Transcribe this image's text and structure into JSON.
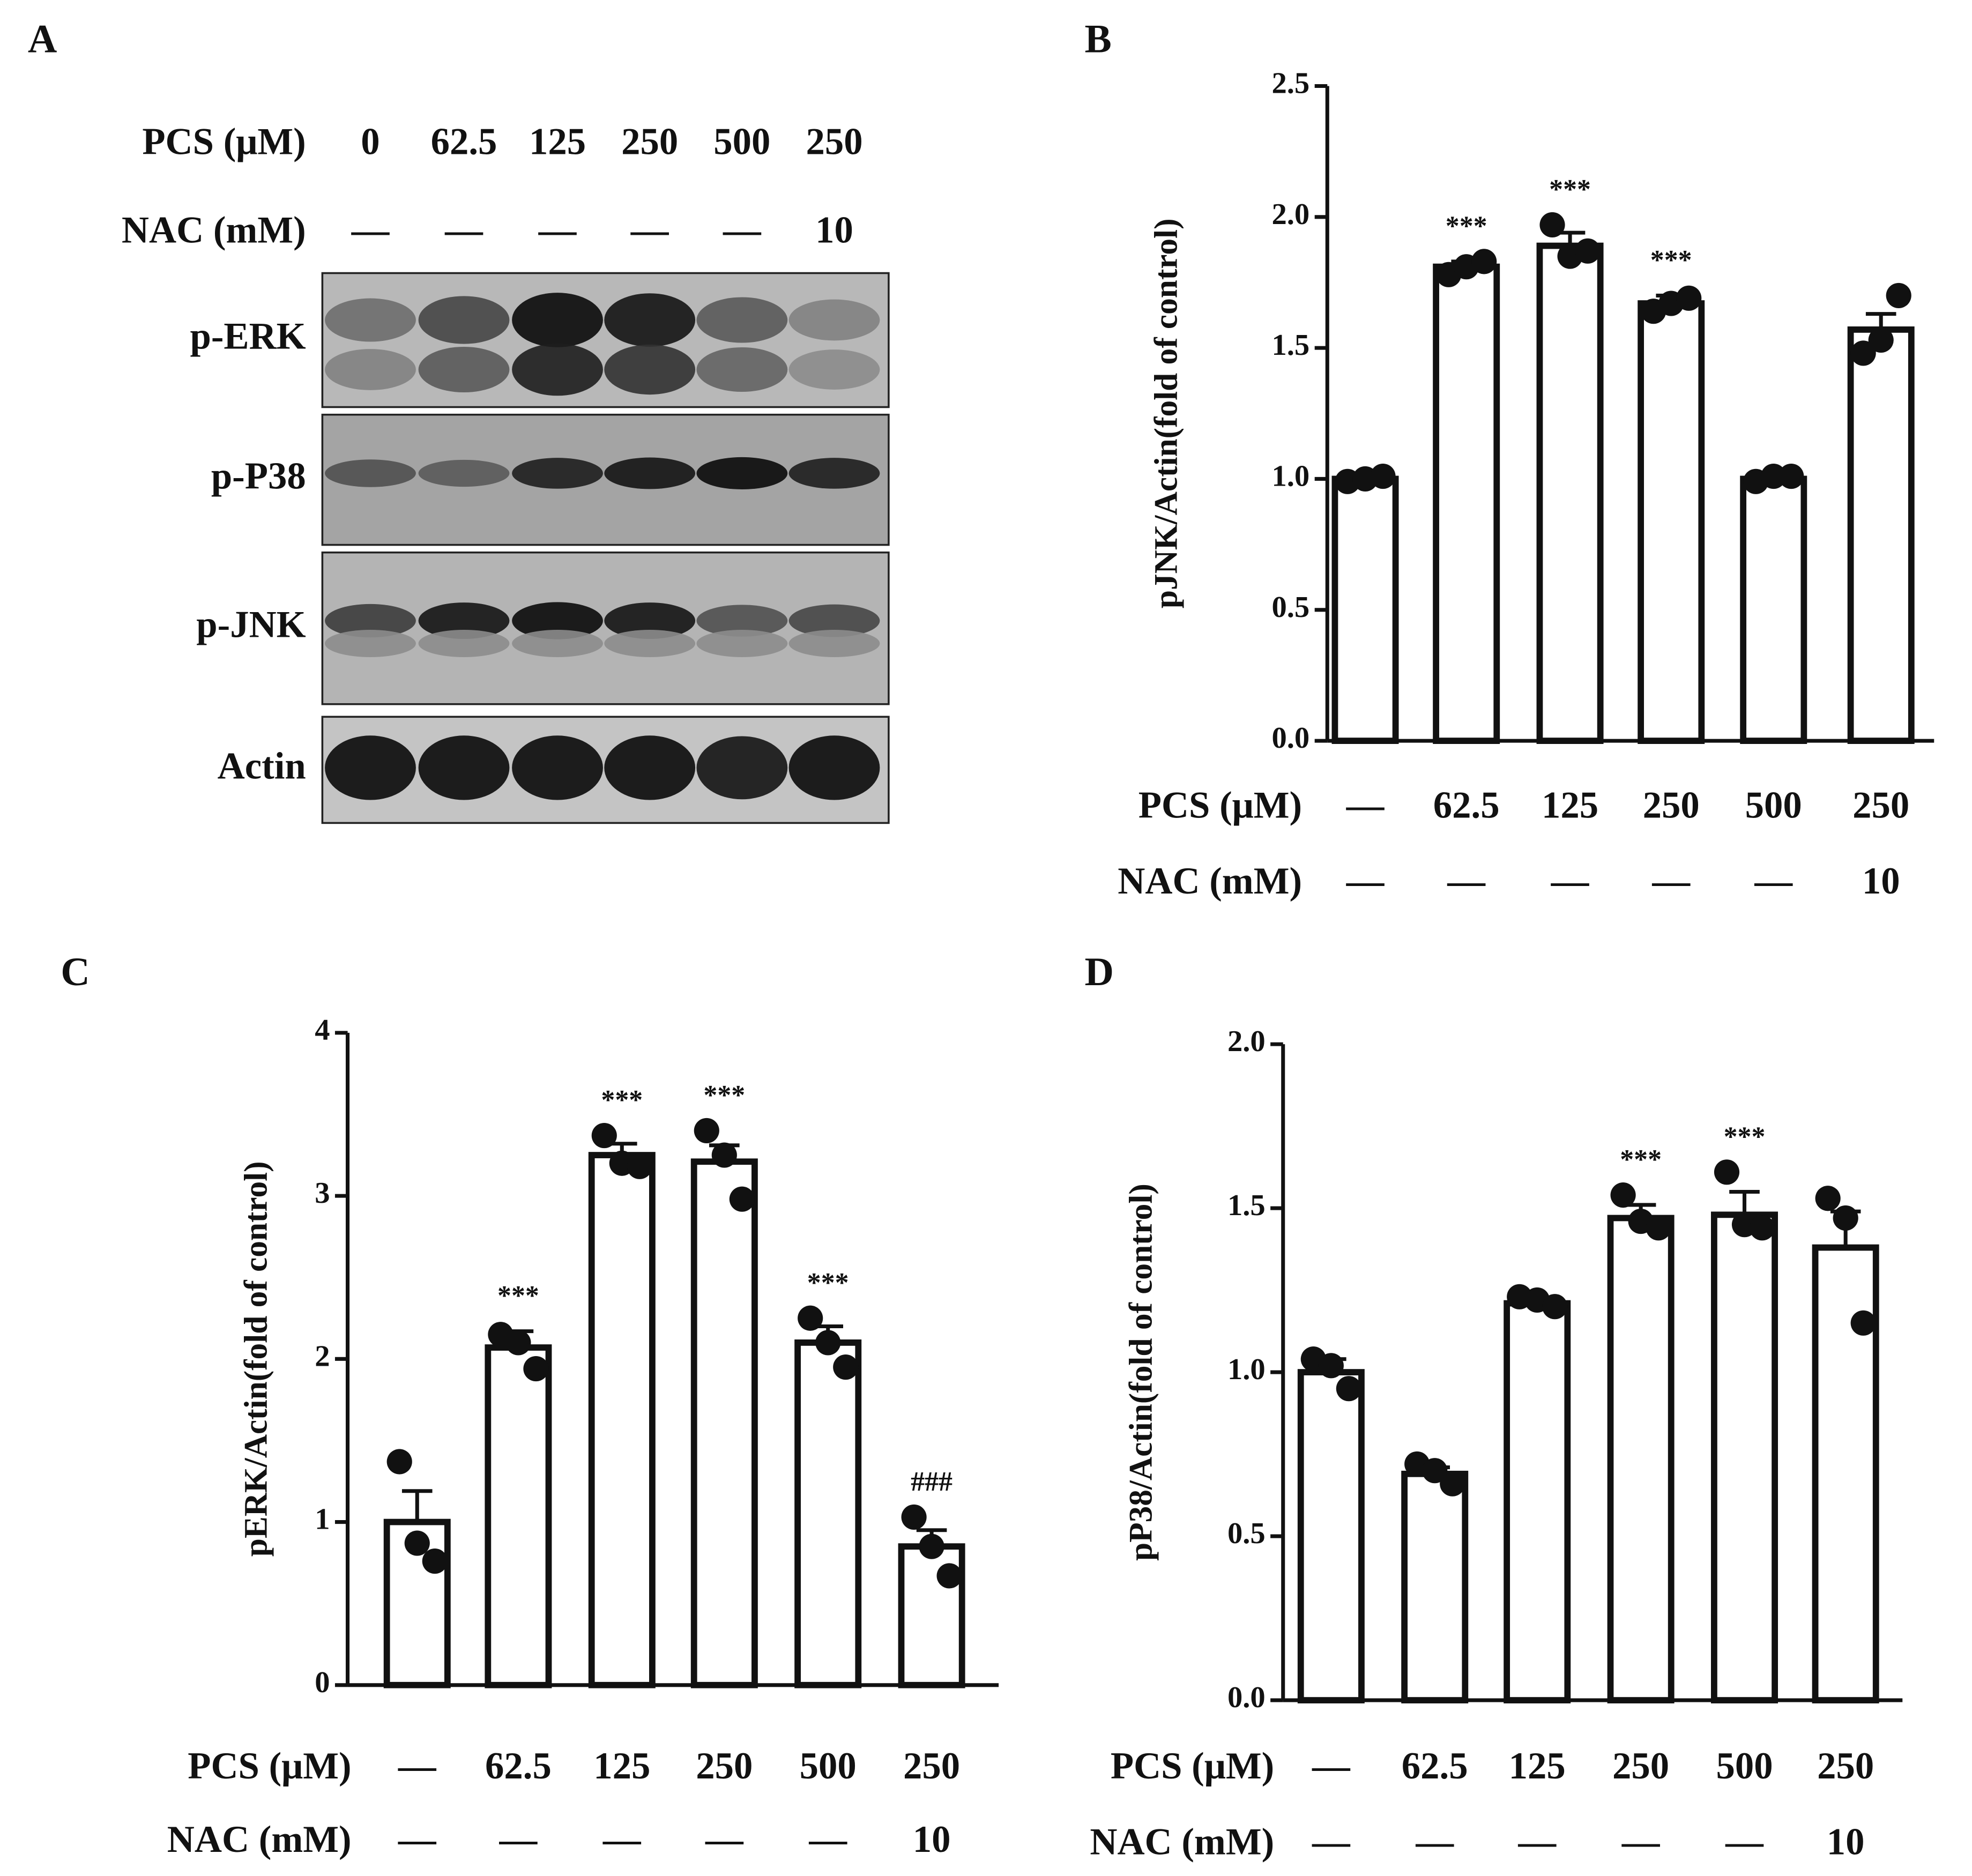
{
  "panel_labels": [
    "A",
    "B",
    "C",
    "D"
  ],
  "blot": {
    "rows": [
      {
        "label": "PCS (μM)",
        "values": [
          "0",
          "62.5",
          "125",
          "250",
          "500",
          "250"
        ]
      },
      {
        "label": "NAC (mM)",
        "values": [
          "—",
          "—",
          "—",
          "—",
          "—",
          "10"
        ]
      }
    ],
    "bands": [
      "p-ERK",
      "p-P38",
      "p-JNK",
      "Actin"
    ]
  },
  "chart_data": [
    {
      "type": "bar",
      "y_label": "pJNK/Actin(fold of control)",
      "category_labels": [
        "PCS (μM)",
        "NAC (mM)"
      ],
      "categories": [
        "—",
        "62.5",
        "125",
        "250",
        "500",
        "250"
      ],
      "categories_nac": [
        "—",
        "—",
        "—",
        "—",
        "—",
        "10"
      ],
      "values": [
        1.0,
        1.81,
        1.89,
        1.67,
        1.0,
        1.57
      ],
      "errors": [
        0.01,
        0.02,
        0.05,
        0.03,
        0.02,
        0.06
      ],
      "points": [
        [
          0.99,
          1.0,
          1.01
        ],
        [
          1.78,
          1.81,
          1.83
        ],
        [
          1.97,
          1.85,
          1.87
        ],
        [
          1.64,
          1.67,
          1.69
        ],
        [
          0.99,
          1.01,
          1.01
        ],
        [
          1.48,
          1.53,
          1.7
        ]
      ],
      "annotations": [
        null,
        "***",
        "***",
        "***",
        null,
        null
      ],
      "color": "#ffffff",
      "ylim": [
        0,
        2.5
      ],
      "yticks": [
        {
          "value": 0,
          "label": "0.0"
        },
        0.5,
        {
          "value": 1,
          "label": "1.0"
        },
        1.5,
        {
          "value": 2,
          "label": "2.0"
        },
        2.5
      ]
    },
    {
      "type": "bar",
      "y_label": "pERK/Actin(fold of control)",
      "category_labels": [
        "PCS (μM)",
        "NAC (mM)"
      ],
      "categories": [
        "—",
        "62.5",
        "125",
        "250",
        "500",
        "250"
      ],
      "categories_nac": [
        "—",
        "—",
        "—",
        "—",
        "—",
        "10"
      ],
      "values": [
        1.0,
        2.07,
        3.25,
        3.21,
        2.1,
        0.85
      ],
      "errors": [
        0.19,
        0.1,
        0.07,
        0.1,
        0.1,
        0.1
      ],
      "points": [
        [
          1.37,
          0.87,
          0.76
        ],
        [
          2.15,
          2.1,
          1.94
        ],
        [
          3.37,
          3.2,
          3.18
        ],
        [
          3.4,
          3.25,
          2.98
        ],
        [
          2.25,
          2.1,
          1.95
        ],
        [
          1.03,
          0.85,
          0.67
        ]
      ],
      "annotations": [
        null,
        "***",
        "***",
        "***",
        "***",
        "###"
      ],
      "color": "#ffffff",
      "ylim": [
        0,
        4
      ],
      "yticks": [
        0,
        1,
        2,
        3,
        4
      ]
    },
    {
      "type": "bar",
      "y_label": "pP38/Actin(fold of control)",
      "category_labels": [
        "PCS (μM)",
        "NAC (mM)"
      ],
      "categories": [
        "—",
        "62.5",
        "125",
        "250",
        "500",
        "250"
      ],
      "categories_nac": [
        "—",
        "—",
        "—",
        "—",
        "—",
        "10"
      ],
      "values": [
        1.0,
        0.69,
        1.21,
        1.47,
        1.48,
        1.38
      ],
      "errors": [
        0.04,
        0.02,
        0.01,
        0.04,
        0.07,
        0.11
      ],
      "points": [
        [
          1.04,
          1.02,
          0.95
        ],
        [
          0.72,
          0.7,
          0.66
        ],
        [
          1.23,
          1.22,
          1.2
        ],
        [
          1.54,
          1.46,
          1.44
        ],
        [
          1.61,
          1.45,
          1.44
        ],
        [
          1.53,
          1.47,
          1.15
        ]
      ],
      "annotations": [
        null,
        null,
        null,
        "***",
        "***",
        null
      ],
      "color": "#ffffff",
      "ylim": [
        0,
        2
      ],
      "yticks": [
        {
          "value": 0,
          "label": "0.0"
        },
        0.5,
        {
          "value": 1,
          "label": "1.0"
        },
        1.5,
        {
          "value": 2,
          "label": "2.0"
        }
      ]
    }
  ]
}
